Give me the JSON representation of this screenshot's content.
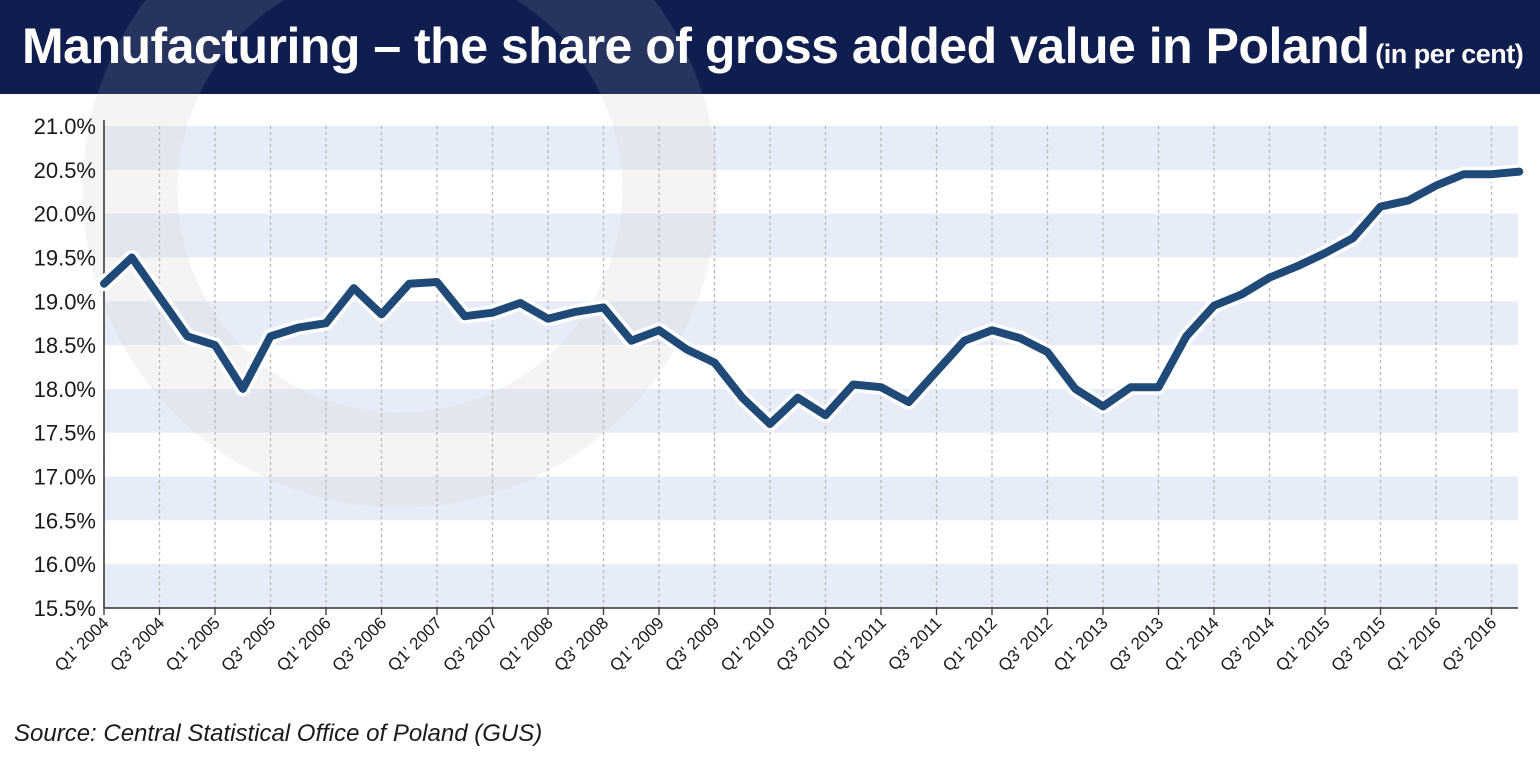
{
  "title": {
    "main": "Manufacturing – the share of gross added value in Poland",
    "unit": "(in per cent)"
  },
  "source": "Source: Central Statistical Office of Poland (GUS)",
  "colors": {
    "header_bg": "#0f1d4f",
    "line": "#1f4a77",
    "line_halo": "#ffffff",
    "band": "#e6edf8",
    "grid": "#b8b8b8"
  },
  "chart_data": {
    "type": "line",
    "title": "Manufacturing – the share of gross added value in Poland",
    "subtitle": "(in per cent)",
    "xlabel": "",
    "ylabel": "",
    "ylim": [
      15.5,
      21.0
    ],
    "y_ticks": [
      "15.5%",
      "16.0%",
      "16.5%",
      "17.0%",
      "17.5%",
      "18.0%",
      "18.5%",
      "19.0%",
      "19.5%",
      "20.0%",
      "20.5%",
      "21.0%"
    ],
    "y_tick_values": [
      15.5,
      16.0,
      16.5,
      17.0,
      17.5,
      18.0,
      18.5,
      19.0,
      19.5,
      20.0,
      20.5,
      21.0
    ],
    "x_tick_labels": [
      "Q1' 2004",
      "Q3' 2004",
      "Q1' 2005",
      "Q3' 2005",
      "Q1' 2006",
      "Q3' 2006",
      "Q1' 2007",
      "Q3' 2007",
      "Q1' 2008",
      "Q3' 2008",
      "Q1' 2009",
      "Q3' 2009",
      "Q1' 2010",
      "Q3' 2010",
      "Q1' 2011",
      "Q3' 2011",
      "Q1' 2012",
      "Q3' 2012",
      "Q1' 2013",
      "Q3' 2013",
      "Q1' 2014",
      "Q3' 2014",
      "Q1' 2015",
      "Q3' 2015",
      "Q1' 2016",
      "Q3' 2016"
    ],
    "grid": true,
    "legend": "none",
    "series": [
      {
        "values": [
          19.2,
          19.5,
          19.05,
          18.6,
          18.5,
          18.0,
          18.6,
          18.7,
          18.75,
          19.15,
          18.85,
          19.2,
          19.22,
          18.83,
          18.87,
          18.98,
          18.8,
          18.88,
          18.93,
          18.55,
          18.67,
          18.45,
          18.3,
          17.9,
          17.6,
          17.9,
          17.7,
          18.05,
          18.02,
          17.85,
          18.2,
          18.55,
          18.67,
          18.58,
          18.42,
          18.0,
          17.8,
          18.02,
          18.02,
          18.6,
          18.95,
          19.08,
          19.27,
          19.4,
          19.55,
          19.72,
          20.08,
          20.15,
          20.32,
          20.45,
          20.45,
          20.48
        ]
      }
    ]
  }
}
